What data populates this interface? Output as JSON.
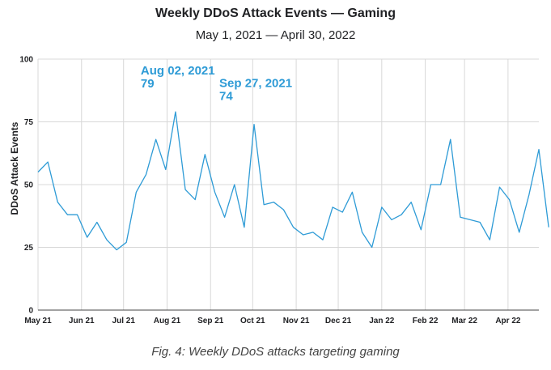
{
  "chart_data": {
    "type": "line",
    "title": "Weekly DDoS Attack Events — Gaming",
    "subtitle": "May 1, 2021 — April 30, 2022",
    "xlabel": "",
    "ylabel": "DDoS Attack Events",
    "ylim": [
      0,
      100
    ],
    "yticks": [
      0,
      25,
      50,
      75,
      100
    ],
    "xlim": [
      0,
      51
    ],
    "x_tick_labels": [
      "May 21",
      "Jun 21",
      "Jul 21",
      "Aug 21",
      "Sep 21",
      "Oct 21",
      "Nov 21",
      "Dec 21",
      "Jan 22",
      "Feb 22",
      "Mar 22",
      "Apr 22"
    ],
    "x_tick_weeks": [
      0,
      4.43,
      8.71,
      13.14,
      17.57,
      21.86,
      26.29,
      30.57,
      35,
      39.43,
      43.43,
      47.86
    ],
    "grid": true,
    "series": [
      {
        "name": "Gaming",
        "color": "#2e9bd6",
        "values": [
          55,
          59,
          43,
          38,
          38,
          29,
          35,
          28,
          24,
          27,
          47,
          54,
          68,
          56,
          79,
          48,
          44,
          62,
          47,
          37,
          50,
          33,
          74,
          42,
          43,
          40,
          33,
          30,
          31,
          28,
          41,
          39,
          47,
          31,
          25,
          41,
          36,
          38,
          43,
          32,
          50,
          50,
          68,
          37,
          36,
          35,
          28,
          49,
          44,
          31,
          46,
          64,
          33
        ]
      }
    ],
    "annotations": [
      {
        "date": "Aug 02, 2021",
        "value": "79",
        "week": 14,
        "color": "#2e9bd6"
      },
      {
        "date": "Sep 27, 2021",
        "value": "74",
        "week": 22,
        "color": "#2e9bd6"
      }
    ]
  },
  "caption": "Fig. 4: Weekly DDoS attacks targeting gaming"
}
